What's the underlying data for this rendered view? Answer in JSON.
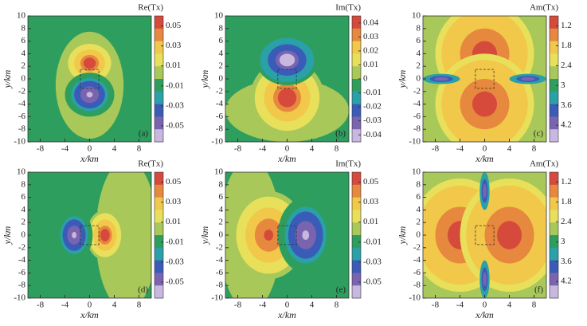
{
  "chart_data": [
    {
      "type": "contour",
      "title": "Re(Tx)",
      "panel_label": "(a)",
      "xlabel": "x/km",
      "ylabel": "y/km",
      "xlim": [
        -10,
        10
      ],
      "ylim": [
        -10,
        10
      ],
      "xticks": [
        -8,
        -4,
        0,
        4,
        8
      ],
      "yticks": [
        -10,
        -8,
        -6,
        -4,
        -2,
        0,
        2,
        4,
        6,
        8,
        10
      ],
      "clim": [
        0.06,
        -0.066
      ],
      "cticks": [
        0.05,
        0.03,
        0.01,
        -0.01,
        -0.03,
        -0.05
      ],
      "colormap": [
        "#d64a3c",
        "#e6883e",
        "#f2c84a",
        "#e8e05a",
        "#a8c85a",
        "#2e9e5e",
        "#2aa0a8",
        "#3a5cb8",
        "#7a64b0",
        "#c8b8e0"
      ],
      "background": -0.005,
      "lobes": [
        {
          "x": 0,
          "y": -1,
          "rx": 5.5,
          "ry": 8.5,
          "edge": 0.002,
          "peak": 0.002
        },
        {
          "x": 0,
          "y": 2.5,
          "rx": 4,
          "ry": 3.5,
          "edge": 0.006,
          "peak": 0.055
        },
        {
          "x": 0,
          "y": -2.5,
          "rx": 4,
          "ry": 3.5,
          "edge": -0.006,
          "peak": -0.06
        }
      ],
      "box_x": [
        -1.5,
        1.5
      ],
      "box_y": [
        -1.5,
        1.5
      ]
    },
    {
      "type": "contour",
      "title": "Im(Tx)",
      "panel_label": "(b)",
      "xlabel": "x/km",
      "ylabel": "y/km",
      "xlim": [
        -10,
        10
      ],
      "ylim": [
        -10,
        10
      ],
      "xticks": [
        -8,
        -4,
        0,
        4,
        8
      ],
      "yticks": [
        -10,
        -8,
        -6,
        -4,
        -2,
        0,
        2,
        4,
        6,
        8,
        10
      ],
      "clim": [
        0.045,
        -0.045
      ],
      "cticks": [
        0.04,
        0.03,
        0.02,
        0.01,
        0,
        -0.01,
        -0.02,
        -0.03,
        -0.04
      ],
      "colormap": [
        "#d64a3c",
        "#e6883e",
        "#f2c84a",
        "#e8e05a",
        "#a8c85a",
        "#2e9e5e",
        "#2aa0a8",
        "#3a5cb8",
        "#7a64b0",
        "#c8b8e0"
      ],
      "background": -0.003,
      "lobes": [
        {
          "x": 0,
          "y": -5,
          "rx": 10,
          "ry": 5,
          "edge": 0.002,
          "peak": 0.002
        },
        {
          "x": 0,
          "y": -3,
          "rx": 6,
          "ry": 6,
          "edge": 0.004,
          "peak": 0.042
        },
        {
          "x": 0,
          "y": 3,
          "rx": 5,
          "ry": 4,
          "edge": -0.006,
          "peak": -0.042
        }
      ],
      "box_x": [
        -1.5,
        1.5
      ],
      "box_y": [
        -1.5,
        1.5
      ]
    },
    {
      "type": "contour",
      "title": "Am(Tx)",
      "panel_label": "(c)",
      "xlabel": "x/km",
      "ylabel": "y/km",
      "xlim": [
        -10,
        10
      ],
      "ylim": [
        -10,
        10
      ],
      "xticks": [
        -8,
        -4,
        0,
        4,
        8
      ],
      "yticks": [
        -10,
        -8,
        -6,
        -4,
        -2,
        0,
        2,
        4,
        6,
        8,
        10
      ],
      "clim": [
        0.9,
        4.7
      ],
      "cticks": [
        1.2,
        1.8,
        2.4,
        3,
        3.6,
        4.2
      ],
      "colormap": [
        "#d64a3c",
        "#e6883e",
        "#f2c84a",
        "#e8e05a",
        "#a8c85a",
        "#2e9e5e",
        "#2aa0a8",
        "#3a5cb8",
        "#7a64b0",
        "#c8b8e0"
      ],
      "background": 2.7,
      "lobes": [
        {
          "x": 0,
          "y": 4,
          "rx": 8,
          "ry": 8,
          "edge": 2.2,
          "peak": 1.0
        },
        {
          "x": 0,
          "y": -4,
          "rx": 8,
          "ry": 8,
          "edge": 2.2,
          "peak": 1.0
        },
        {
          "x": -7,
          "y": 0,
          "rx": 3,
          "ry": 0.8,
          "edge": 3.3,
          "peak": 4.2
        },
        {
          "x": 7,
          "y": 0,
          "rx": 3,
          "ry": 0.8,
          "edge": 3.3,
          "peak": 4.2
        }
      ],
      "box_x": [
        -1.5,
        1.5
      ],
      "box_y": [
        -1.5,
        1.5
      ]
    },
    {
      "type": "contour",
      "title": "Re(Tx)",
      "panel_label": "(d)",
      "xlabel": "x/km",
      "ylabel": "y/km",
      "xlim": [
        -10,
        10
      ],
      "ylim": [
        -10,
        10
      ],
      "xticks": [
        -8,
        -4,
        0,
        4,
        8
      ],
      "yticks": [
        -10,
        -8,
        -6,
        -4,
        -2,
        0,
        2,
        4,
        6,
        8,
        10
      ],
      "clim": [
        0.06,
        -0.066
      ],
      "cticks": [
        0.05,
        0.03,
        0.01,
        -0.01,
        -0.03,
        -0.05
      ],
      "colormap": [
        "#d64a3c",
        "#e6883e",
        "#f2c84a",
        "#e8e05a",
        "#a8c85a",
        "#2e9e5e",
        "#2aa0a8",
        "#3a5cb8",
        "#7a64b0",
        "#c8b8e0"
      ],
      "background": -0.005,
      "lobes": [
        {
          "x": 6,
          "y": 0,
          "rx": 5,
          "ry": 12,
          "edge": 0.002,
          "peak": 0.002
        },
        {
          "x": -2,
          "y": 0,
          "rx": 4.5,
          "ry": 5.5,
          "edge": -0.006,
          "peak": -0.006
        },
        {
          "x": 2.5,
          "y": 0,
          "rx": 3,
          "ry": 4,
          "edge": 0.006,
          "peak": 0.055
        },
        {
          "x": -2.5,
          "y": 0,
          "rx": 3,
          "ry": 4,
          "edge": -0.008,
          "peak": -0.06
        }
      ],
      "box_x": [
        -1.5,
        1.5
      ],
      "box_y": [
        -1.5,
        1.5
      ]
    },
    {
      "type": "contour",
      "title": "Im(Tx)",
      "panel_label": "(e)",
      "xlabel": "x/km",
      "ylabel": "y/km",
      "xlim": [
        -10,
        10
      ],
      "ylim": [
        -10,
        10
      ],
      "xticks": [
        -8,
        -4,
        0,
        4,
        8
      ],
      "yticks": [
        -10,
        -8,
        -6,
        -4,
        -2,
        0,
        2,
        4,
        6,
        8,
        10
      ],
      "clim": [
        0.06,
        -0.066
      ],
      "cticks": [
        0.05,
        0.03,
        0.01,
        -0.01,
        -0.03,
        -0.05
      ],
      "colormap": [
        "#d64a3c",
        "#e6883e",
        "#f2c84a",
        "#e8e05a",
        "#a8c85a",
        "#2e9e5e",
        "#2aa0a8",
        "#3a5cb8",
        "#7a64b0",
        "#c8b8e0"
      ],
      "background": -0.005,
      "lobes": [
        {
          "x": -6,
          "y": 0,
          "rx": 5,
          "ry": 12,
          "edge": 0.002,
          "peak": 0.002
        },
        {
          "x": -3,
          "y": 0,
          "rx": 6,
          "ry": 7,
          "edge": 0.006,
          "peak": 0.052
        },
        {
          "x": 3,
          "y": 0,
          "rx": 4.5,
          "ry": 6,
          "edge": -0.008,
          "peak": -0.06
        }
      ],
      "box_x": [
        -1.5,
        1.5
      ],
      "box_y": [
        -1.5,
        1.5
      ]
    },
    {
      "type": "contour",
      "title": "Am(Tx)",
      "panel_label": "(f)",
      "xlabel": "x/km",
      "ylabel": "y/km",
      "xlim": [
        -10,
        10
      ],
      "ylim": [
        -10,
        10
      ],
      "xticks": [
        -8,
        -4,
        0,
        4,
        8
      ],
      "yticks": [
        -10,
        -8,
        -6,
        -4,
        -2,
        0,
        2,
        4,
        6,
        8,
        10
      ],
      "clim": [
        0.9,
        4.7
      ],
      "cticks": [
        1.2,
        1.8,
        2.4,
        3,
        3.6,
        4.2
      ],
      "colormap": [
        "#d64a3c",
        "#e6883e",
        "#f2c84a",
        "#e8e05a",
        "#a8c85a",
        "#2e9e5e",
        "#2aa0a8",
        "#3a5cb8",
        "#7a64b0",
        "#c8b8e0"
      ],
      "background": 2.7,
      "lobes": [
        {
          "x": -4,
          "y": 0,
          "rx": 8,
          "ry": 9,
          "edge": 2.2,
          "peak": 1.0
        },
        {
          "x": 4,
          "y": 0,
          "rx": 8,
          "ry": 9,
          "edge": 2.2,
          "peak": 1.0
        },
        {
          "x": 0,
          "y": 7,
          "rx": 0.8,
          "ry": 3,
          "edge": 3.3,
          "peak": 4.2
        },
        {
          "x": 0,
          "y": -7,
          "rx": 0.8,
          "ry": 3,
          "edge": 3.3,
          "peak": 4.2
        }
      ],
      "box_x": [
        -1.5,
        1.5
      ],
      "box_y": [
        -1.5,
        1.5
      ]
    }
  ]
}
